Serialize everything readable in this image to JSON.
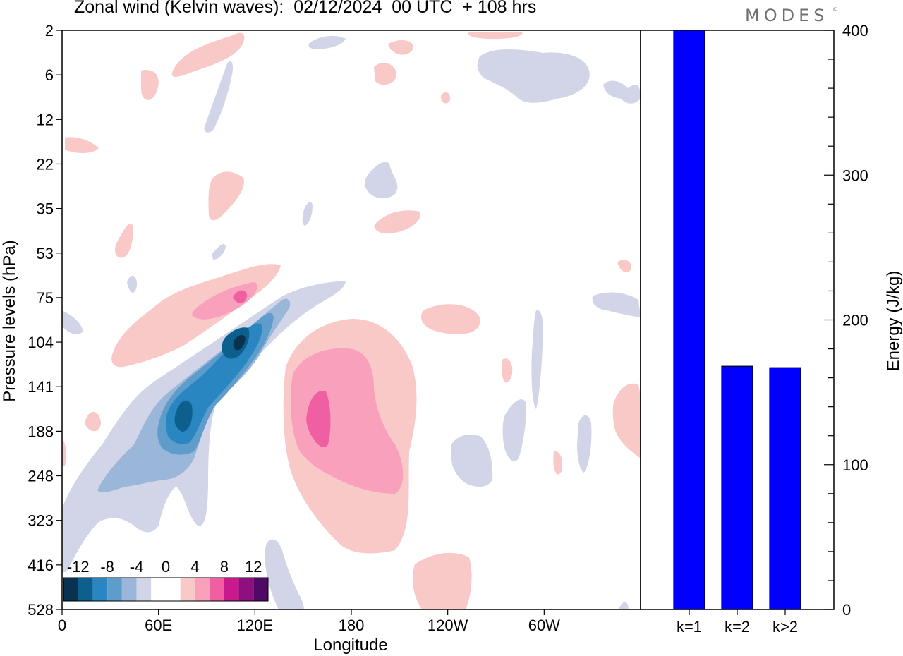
{
  "header": {
    "title": "Zonal wind (Kelvin waves):  02/12/2024  00 UTC  + 108 hrs",
    "logo": "MODES",
    "logo_mark": "©"
  },
  "chart_data": [
    {
      "type": "heatmap",
      "xlabel": "Longitude",
      "ylabel": "Pressure levels (hPa)",
      "x_ticks": [
        "0",
        "60E",
        "120E",
        "180",
        "120W",
        "60W"
      ],
      "y_ticks": [
        "2",
        "6",
        "12",
        "22",
        "35",
        "53",
        "75",
        "104",
        "141",
        "188",
        "248",
        "323",
        "416",
        "528"
      ],
      "colorbar": {
        "labels": [
          "-12",
          "-8",
          "-4",
          "0",
          "4",
          "8",
          "12"
        ],
        "colors": [
          "#08324f",
          "#0d5f8e",
          "#2a86c1",
          "#5e9ccc",
          "#9ab6d9",
          "#d2d5e8",
          "#ffffff",
          "#ffffff",
          "#f9c9c7",
          "#f8a0bc",
          "#ef5fa1",
          "#c81a8c",
          "#8e0f7f",
          "#4f0a66"
        ]
      },
      "colors": {
        "neg_light": "#d2d5e8",
        "neg_2": "#9ab6d9",
        "neg_3": "#5e9ccc",
        "neg_4": "#2a86c1",
        "neg_5": "#0d5f8e",
        "neg_6": "#08324f",
        "pos_light": "#f9c9c7",
        "pos_2": "#f8a0bc",
        "pos_3": "#ef5fa1"
      }
    },
    {
      "type": "bar",
      "categories": [
        "k=1",
        "k=2",
        "k>2"
      ],
      "values": [
        400,
        168,
        167
      ],
      "ylabel": "Energy (J/kg)",
      "ylim": [
        0,
        400
      ],
      "y_ticks": [
        "0",
        "100",
        "200",
        "300",
        "400"
      ],
      "bar_color": "#0000ff"
    }
  ]
}
